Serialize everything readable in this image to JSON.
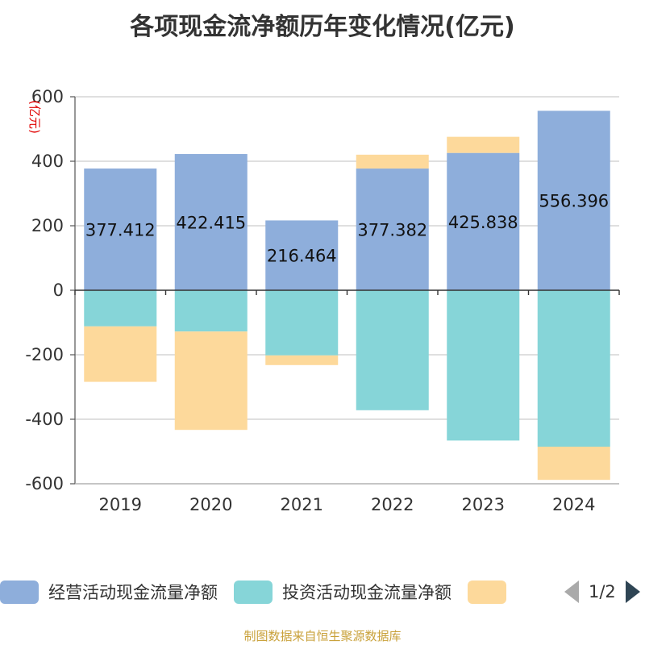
{
  "title": "各项现金流净额历年变化情况(亿元)",
  "footer": "制图数据来自恒生聚源数据库",
  "colors": {
    "operating": "#8eaedb",
    "investing": "#86d5d8",
    "financing": "#fdd99b"
  },
  "legend": {
    "items": [
      "经营活动现金流量净额",
      "投资活动现金流量净额",
      ""
    ],
    "page": "1/2"
  },
  "chart_data": {
    "type": "bar",
    "stacked": true,
    "categories": [
      "2019",
      "2020",
      "2021",
      "2022",
      "2023",
      "2024"
    ],
    "ylabel": "(亿元)",
    "ylim": [
      -600,
      600
    ],
    "yticks": [
      600,
      400,
      200,
      0,
      -200,
      -400,
      -600
    ],
    "grid": true,
    "legend_position": "bottom",
    "series": [
      {
        "name": "经营活动现金流量净额",
        "values": [
          377.412,
          422.415,
          216.464,
          377.382,
          425.838,
          556.396
        ],
        "labels": [
          "377.412",
          "422.415",
          "216.464",
          "377.382",
          "425.838",
          "556.396"
        ]
      },
      {
        "name": "投资活动现金流量净额",
        "values": [
          -112,
          -128,
          -202,
          -372,
          -466,
          -485
        ]
      },
      {
        "values": [
          -172,
          -305,
          -30,
          43,
          50,
          -103
        ]
      }
    ]
  }
}
